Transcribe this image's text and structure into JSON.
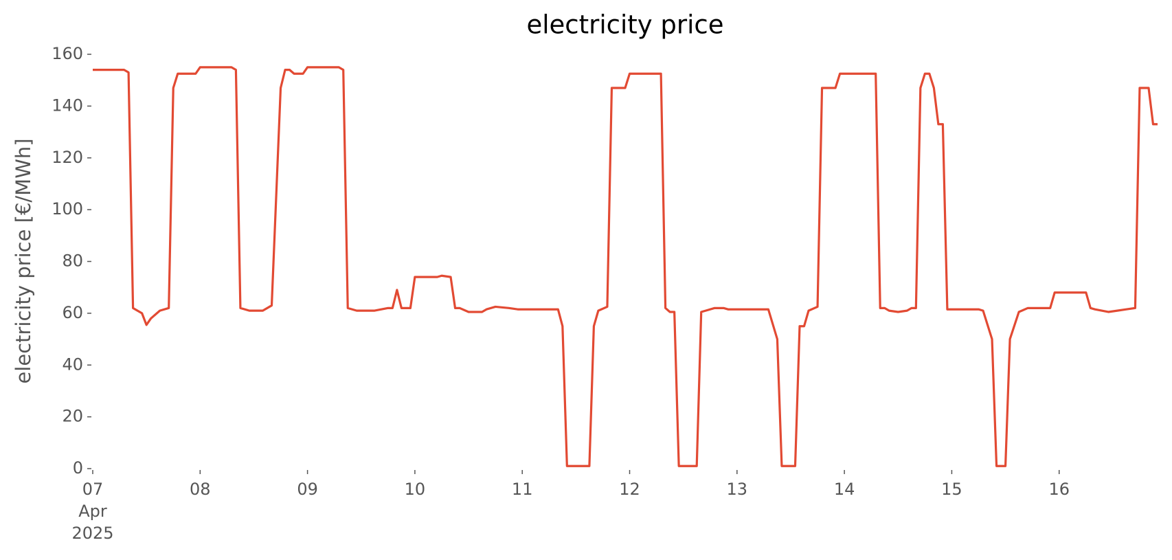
{
  "chart_data": {
    "type": "line",
    "title": "electricity price",
    "y_label": "electricity price [€/MWh]",
    "color": "#e24a33",
    "x": [
      0,
      7,
      8,
      9,
      11,
      12,
      13,
      15,
      17,
      18,
      19,
      23,
      24,
      31,
      32,
      33,
      35,
      38,
      40,
      42,
      43,
      44,
      45,
      47,
      48,
      55,
      56,
      57,
      59,
      63,
      66,
      67,
      68,
      69,
      71,
      72,
      77,
      78,
      80,
      81,
      82,
      84,
      87,
      88,
      90,
      93,
      95,
      96,
      104,
      105,
      106,
      111,
      112,
      113,
      115,
      116,
      119,
      120,
      127,
      128,
      129,
      130,
      131,
      135,
      136,
      137,
      139,
      141,
      142,
      144,
      151,
      153,
      154,
      157,
      158,
      159,
      160,
      162,
      163,
      166,
      167,
      175,
      176,
      177,
      178,
      180,
      182,
      183,
      184,
      185,
      186,
      187,
      188,
      189,
      190,
      191,
      198,
      199,
      201,
      202,
      204,
      205,
      207,
      209,
      214,
      215,
      222,
      223,
      224,
      227,
      229,
      231,
      233,
      234,
      236,
      237,
      238
    ],
    "values": [
      154,
      154,
      153,
      62,
      60,
      55.5,
      58,
      61,
      62,
      147,
      152.5,
      152.5,
      155,
      155,
      154,
      62,
      61,
      61,
      63,
      147,
      154,
      154,
      152.5,
      152.5,
      155,
      155,
      154,
      62,
      61,
      61,
      62,
      62,
      69,
      62,
      62,
      74,
      74,
      74.5,
      74,
      62,
      62,
      60.5,
      60.5,
      61.5,
      62.5,
      62,
      61.5,
      61.5,
      61.5,
      55,
      1,
      1,
      55,
      61,
      62.5,
      147,
      147,
      152.5,
      152.5,
      62,
      60.5,
      60.5,
      1,
      1,
      60.5,
      61,
      62,
      62,
      61.5,
      61.5,
      61.5,
      50,
      1,
      1,
      55,
      55,
      61,
      62.5,
      147,
      147,
      152.5,
      152.5,
      62,
      62,
      61,
      60.5,
      61,
      62,
      62,
      147,
      152.5,
      152.5,
      147,
      133,
      133,
      61.5,
      61.5,
      61,
      50,
      1,
      1,
      50,
      60.5,
      62,
      62,
      68,
      68,
      62,
      61.5,
      60.5,
      61,
      61.5,
      62,
      147,
      147,
      133,
      133
    ],
    "xlim": [
      0,
      238
    ],
    "xticks": [
      {
        "value": 0,
        "label": "07\nApr\n2025"
      },
      {
        "value": 24,
        "label": "08"
      },
      {
        "value": 48,
        "label": "09"
      },
      {
        "value": 72,
        "label": "10"
      },
      {
        "value": 96,
        "label": "11"
      },
      {
        "value": 120,
        "label": "12"
      },
      {
        "value": 144,
        "label": "13"
      },
      {
        "value": 168,
        "label": "14"
      },
      {
        "value": 192,
        "label": "15"
      },
      {
        "value": 216,
        "label": "16"
      }
    ],
    "ylim": [
      0,
      160
    ],
    "yticks": [
      0,
      20,
      40,
      60,
      80,
      100,
      120,
      140,
      160
    ],
    "grid": false
  }
}
